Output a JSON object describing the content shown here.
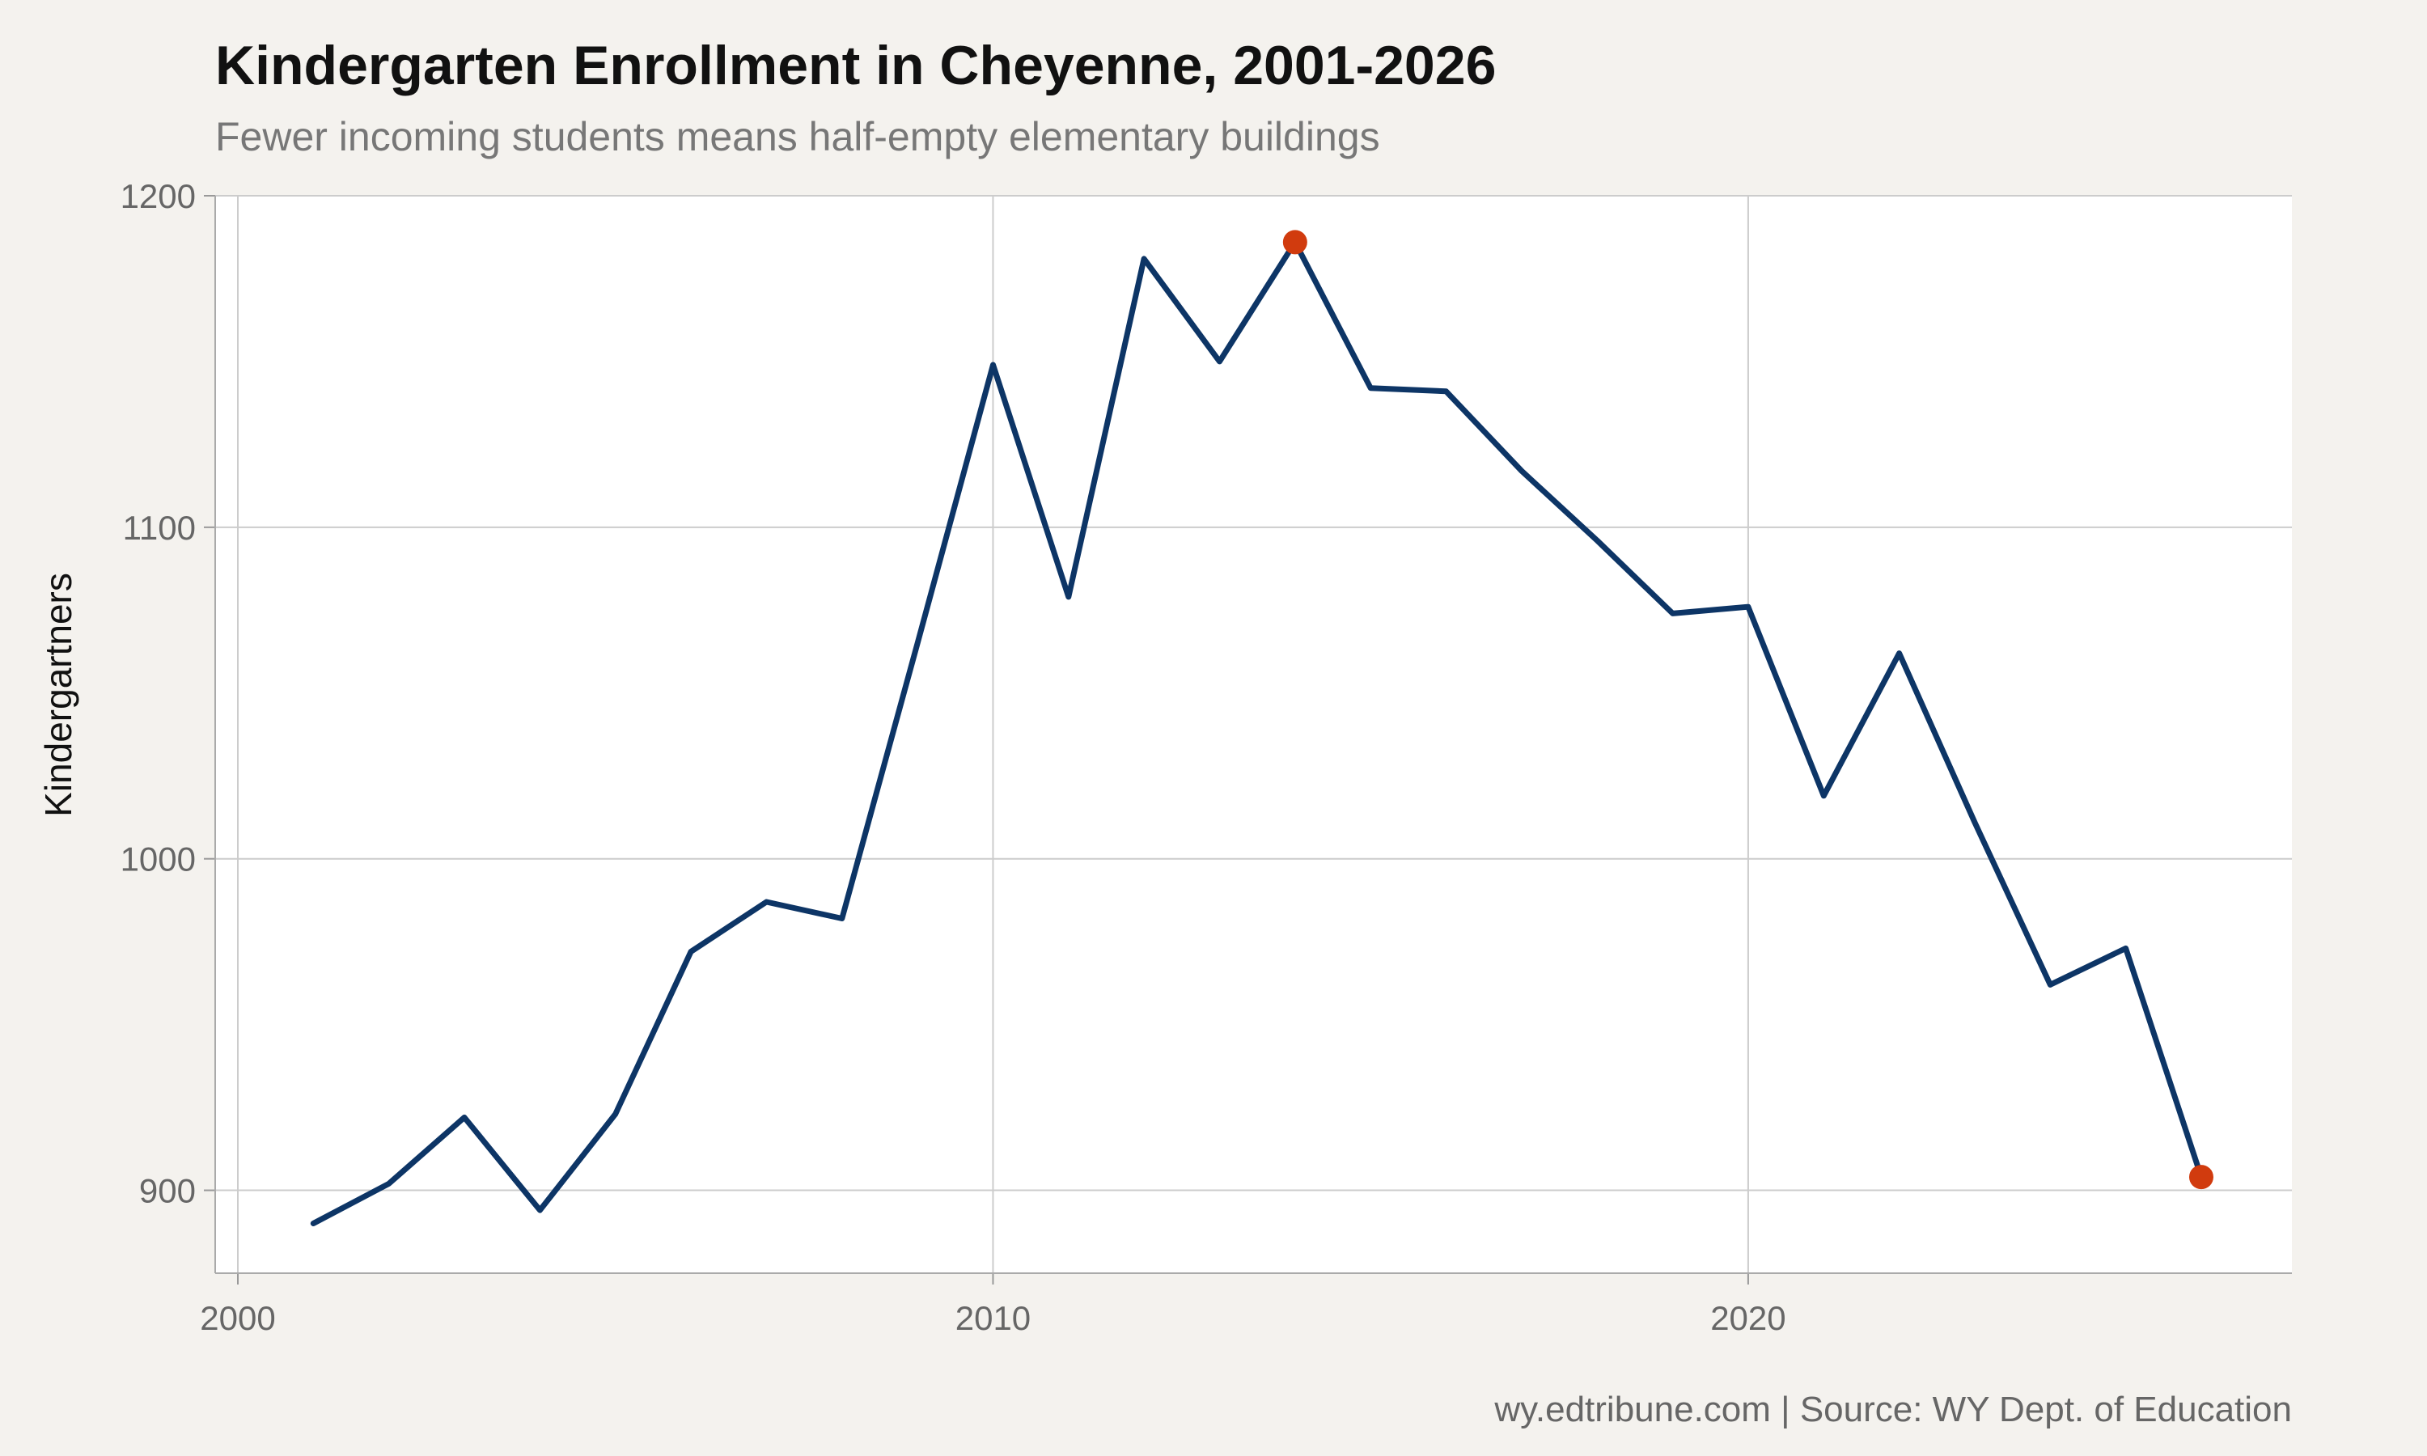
{
  "chart": {
    "title": "Kindergarten Enrollment in Cheyenne, 2001-2026",
    "subtitle": "Fewer incoming students means half-empty elementary buildings",
    "caption": "wy.edtribune.com | Source: WY Dept. of Education"
  },
  "chart_data": {
    "type": "line",
    "title": "Kindergarten Enrollment in Cheyenne, 2001-2026",
    "subtitle": "Fewer incoming students means half-empty elementary buildings",
    "xlabel": "",
    "ylabel": "Kindergartners",
    "x": [
      2001,
      2002,
      2003,
      2004,
      2005,
      2006,
      2007,
      2008,
      2009,
      2010,
      2011,
      2012,
      2013,
      2014,
      2015,
      2016,
      2017,
      2018,
      2019,
      2020,
      2021,
      2022,
      2023,
      2024,
      2025,
      2026
    ],
    "series": [
      {
        "name": "",
        "values": [
          890,
          902,
          922,
          894,
          923,
          972,
          987,
          982,
          1065,
          1149,
          1079,
          1181,
          1150,
          1186,
          1142,
          1141,
          1117,
          1096,
          1074,
          1076,
          1019,
          1062,
          1011,
          962,
          973,
          904
        ]
      }
    ],
    "highlighted_points": [
      {
        "x": 2014,
        "y": 1186
      },
      {
        "x": 2026,
        "y": 904
      }
    ],
    "xlim": [
      1999.7,
      2027.2
    ],
    "ylim": [
      875,
      1200
    ],
    "x_ticks": [
      2000,
      2010,
      2020
    ],
    "x_tick_labels": [
      "2000",
      "2010",
      "2020"
    ],
    "y_ticks": [
      900,
      1000,
      1100,
      1200
    ],
    "y_tick_labels": [
      "900",
      "1000",
      "1100",
      "1200"
    ],
    "grid": true,
    "legend": "none",
    "colors": {
      "line": "#0d3566",
      "highlight": "#d13b0e",
      "background": "#f4f2ee",
      "panel": "#ffffff",
      "grid": "#cccccc"
    }
  }
}
